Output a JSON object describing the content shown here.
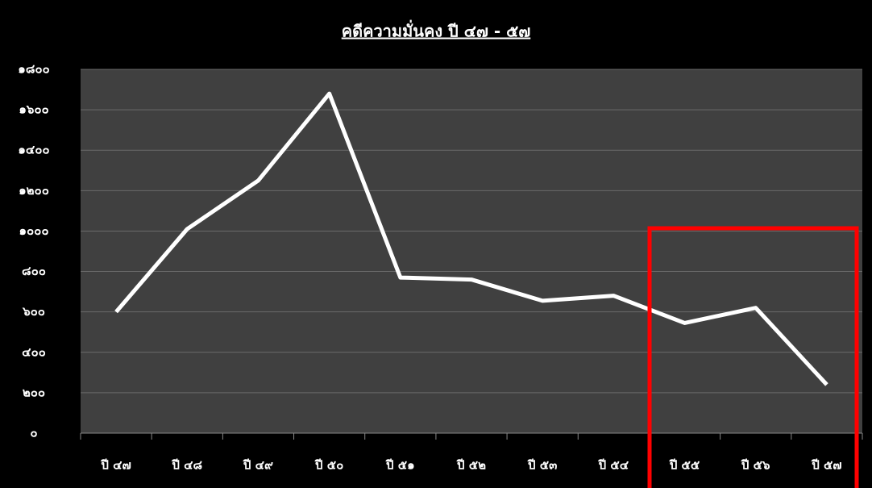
{
  "chart_data": {
    "type": "line",
    "title": "คดีความมั่นคง ปี ๔๗ - ๕๗",
    "categories": [
      "ปี ๔๗",
      "ปี ๔๘",
      "ปี ๔๙",
      "ปี ๕๐",
      "ปี ๕๑",
      "ปี ๕๒",
      "ปี ๕๓",
      "ปี ๕๔",
      "ปี ๕๕",
      "ปี ๕๖",
      "ปี ๕๗"
    ],
    "series": [
      {
        "color": "#ffffff",
        "values": [
          600,
          1010,
          1250,
          1680,
          770,
          760,
          655,
          680,
          545,
          620,
          240
        ]
      }
    ],
    "ylim": [
      0,
      1800
    ],
    "yticks": [
      {
        "value": 0,
        "label": "๐"
      },
      {
        "value": 200,
        "label": "๒๐๐"
      },
      {
        "value": 400,
        "label": "๔๐๐"
      },
      {
        "value": 600,
        "label": "๖๐๐"
      },
      {
        "value": 800,
        "label": "๘๐๐"
      },
      {
        "value": 1000,
        "label": "๑๐๐๐"
      },
      {
        "value": 1200,
        "label": "๑๒๐๐"
      },
      {
        "value": 1400,
        "label": "๑๔๐๐"
      },
      {
        "value": 1600,
        "label": "๑๖๐๐"
      },
      {
        "value": 1800,
        "label": "๑๘๐๐"
      }
    ],
    "grid": true
  }
}
